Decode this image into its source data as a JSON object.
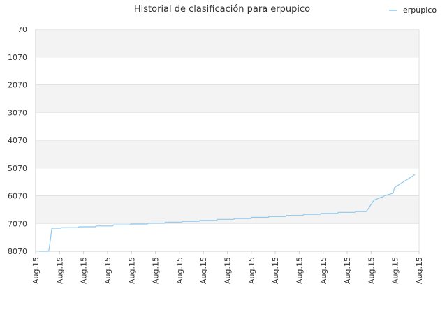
{
  "chart_data": {
    "type": "line",
    "title": "Historial de clasificación para erpupico",
    "xlabel": "",
    "ylabel": "",
    "y_inverted": true,
    "ylim": [
      70,
      8070
    ],
    "y_ticks": [
      "70",
      "1070",
      "2070",
      "3070",
      "4070",
      "5070",
      "6070",
      "7070",
      "8070"
    ],
    "x_ticks": [
      "Aug.15",
      "Aug.15",
      "Aug.15",
      "Aug.15",
      "Aug.15",
      "Aug.15",
      "Aug.15",
      "Aug.15",
      "Aug.15",
      "Aug.15",
      "Aug.15",
      "Aug.15",
      "Aug.15",
      "Aug.15",
      "Aug.15",
      "Aug.15",
      "Aug.15"
    ],
    "grid": true,
    "band_colors": [
      "#f3f3f3",
      "#ffffff"
    ],
    "legend": {
      "position": "top-right",
      "entries": [
        "erpupico"
      ]
    },
    "series": [
      {
        "name": "erpupico",
        "color": "#8ec8ee",
        "x": [
          0.0,
          0.025,
          0.027,
          0.034,
          0.058,
          0.06,
          0.104,
          0.106,
          0.15,
          0.152,
          0.196,
          0.198,
          0.242,
          0.244,
          0.288,
          0.29,
          0.334,
          0.336,
          0.38,
          0.382,
          0.426,
          0.428,
          0.472,
          0.474,
          0.518,
          0.52,
          0.564,
          0.566,
          0.61,
          0.612,
          0.656,
          0.658,
          0.702,
          0.704,
          0.748,
          0.75,
          0.794,
          0.796,
          0.84,
          0.842,
          0.87,
          0.872,
          0.891,
          0.911,
          0.915,
          0.918,
          0.921,
          0.942,
          0.946,
          1.0
        ],
        "y": [
          8070,
          8070,
          7960,
          7240,
          7240,
          7220,
          7220,
          7190,
          7190,
          7160,
          7160,
          7120,
          7120,
          7090,
          7090,
          7060,
          7060,
          7020,
          7020,
          6990,
          6990,
          6960,
          6960,
          6920,
          6920,
          6890,
          6890,
          6850,
          6850,
          6820,
          6820,
          6780,
          6780,
          6740,
          6740,
          6710,
          6710,
          6670,
          6670,
          6640,
          6640,
          6620,
          6230,
          6120,
          6110,
          6080,
          6060,
          5980,
          5770,
          5310
        ]
      }
    ]
  }
}
